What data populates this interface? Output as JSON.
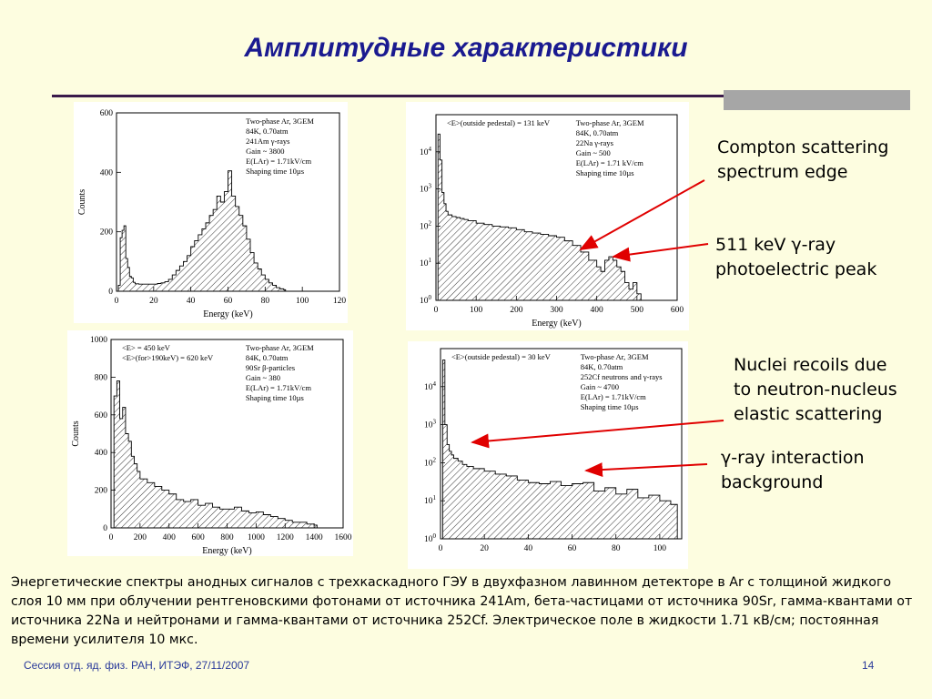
{
  "slide": {
    "title": "Амплитудные характеристики",
    "footer": "Сессия отд. яд. физ. РАН, ИТЭФ, 27/11/2007",
    "page_number": "14",
    "caption": "Энергетические спектры анодных сигналов с трехкаскадного ГЭУ в двухфазном лавинном детекторе в Ar с толщиной жидкого слоя 10 мм при облучении рентгеновскими фотонами от источника 241Am, бета-частицами от источника 90Sr, гамма-квантами от источника 22Na и нейтронами и гамма-квантами от источника 252Cf. Электрическое поле в жидкости 1.71 кВ/см; постоянная времени усилителя 10 мкс.",
    "colors": {
      "background": "#fdfde0",
      "title": "#1a1a90",
      "arrow": "#e00000",
      "footer": "#2a3a9a"
    }
  },
  "annotations": {
    "compton": [
      "Compton scattering",
      "spectrum edge"
    ],
    "peak511": [
      "511 keV γ-ray",
      "photoelectric peak"
    ],
    "nuclei": [
      "Nuclei recoils due",
      "to neutron-nucleus",
      "elastic scattering"
    ],
    "gamma_bg": [
      "γ-ray interaction",
      "background"
    ]
  },
  "chart_data": [
    {
      "type": "area",
      "title": "",
      "xlabel": "Energy (keV)",
      "ylabel": "Counts",
      "xlim": [
        0,
        120
      ],
      "ylim": [
        0,
        600
      ],
      "log_y": false,
      "xticks": [
        0,
        20,
        40,
        60,
        80,
        100,
        120
      ],
      "yticks": [
        0,
        200,
        400,
        600
      ],
      "legend_lines": [
        "Two-phase Ar, 3GEM",
        "84K, 0.70atm",
        "241Am γ-rays",
        "Gain ~ 3800",
        "E(LAr) = 1.71kV/cm",
        "Shaping time 10µs"
      ],
      "x": [
        1,
        2,
        3,
        4,
        5,
        6,
        7,
        8,
        9,
        10,
        12,
        14,
        16,
        18,
        20,
        22,
        24,
        26,
        28,
        30,
        32,
        34,
        36,
        38,
        40,
        42,
        44,
        46,
        48,
        50,
        52,
        54,
        56,
        58,
        60,
        62,
        64,
        66,
        68,
        70,
        72,
        74,
        76,
        78,
        80,
        82,
        84,
        86,
        88,
        90
      ],
      "y": [
        20,
        180,
        205,
        220,
        110,
        80,
        50,
        45,
        30,
        25,
        24,
        24,
        24,
        24,
        24,
        26,
        28,
        32,
        40,
        55,
        70,
        85,
        100,
        120,
        150,
        170,
        190,
        210,
        230,
        255,
        275,
        320,
        300,
        335,
        405,
        320,
        285,
        255,
        220,
        175,
        130,
        95,
        75,
        55,
        40,
        28,
        20,
        12,
        8,
        5
      ]
    },
    {
      "type": "area",
      "title": "",
      "xlabel": "Energy (keV)",
      "ylabel": "",
      "xlim": [
        0,
        600
      ],
      "ylim": [
        1,
        100000
      ],
      "log_y": true,
      "xticks": [
        0,
        100,
        200,
        300,
        400,
        500,
        600
      ],
      "ytick_labels": [
        "10^0",
        "10^1",
        "10^2",
        "10^3",
        "10^4"
      ],
      "annotations": [
        "<E>(outside pedestal) = 131 keV"
      ],
      "legend_lines": [
        "Two-phase Ar, 3GEM",
        "84K, 0.70atm",
        "22Na γ-rays",
        "Gain ~ 500",
        "E(LAr) = 1.71 kV/cm",
        "Shaping time 10µs"
      ],
      "x": [
        0,
        5,
        10,
        15,
        20,
        25,
        30,
        40,
        50,
        60,
        70,
        80,
        100,
        120,
        140,
        160,
        180,
        200,
        220,
        240,
        260,
        280,
        300,
        320,
        340,
        360,
        380,
        400,
        410,
        420,
        430,
        440,
        450,
        460,
        470,
        480,
        490,
        500,
        510
      ],
      "y": [
        1,
        30000,
        6000,
        800,
        400,
        250,
        200,
        180,
        170,
        160,
        150,
        140,
        120,
        110,
        100,
        95,
        90,
        80,
        70,
        65,
        60,
        55,
        50,
        40,
        30,
        20,
        12,
        8,
        6,
        12,
        15,
        12,
        8,
        6,
        3,
        2,
        3,
        1.5,
        1
      ]
    },
    {
      "type": "area",
      "title": "",
      "xlabel": "Energy (keV)",
      "ylabel": "Counts",
      "xlim": [
        0,
        1600
      ],
      "ylim": [
        0,
        1000
      ],
      "log_y": false,
      "xticks": [
        0,
        200,
        400,
        600,
        800,
        1000,
        1200,
        1400,
        1600
      ],
      "yticks": [
        0,
        200,
        400,
        600,
        800,
        1000
      ],
      "annotations": [
        "<E> = 450 keV",
        "<E>(for>190keV) = 620 keV"
      ],
      "legend_lines": [
        "Two-phase Ar, 3GEM",
        "84K, 0.70atm",
        "90Sr β-particles",
        "Gain ~ 380",
        "E(LAr) = 1.71kV/cm",
        "Shaping time 10µs"
      ],
      "x": [
        0,
        20,
        40,
        60,
        80,
        100,
        120,
        140,
        160,
        180,
        200,
        250,
        300,
        350,
        400,
        450,
        500,
        550,
        600,
        650,
        700,
        750,
        800,
        850,
        900,
        950,
        1000,
        1050,
        1100,
        1150,
        1200,
        1250,
        1300,
        1350,
        1400,
        1420
      ],
      "y": [
        0,
        700,
        780,
        580,
        640,
        500,
        460,
        380,
        340,
        300,
        260,
        240,
        220,
        200,
        180,
        150,
        140,
        150,
        120,
        130,
        110,
        100,
        100,
        110,
        90,
        80,
        85,
        70,
        60,
        50,
        40,
        30,
        30,
        20,
        15,
        0
      ]
    },
    {
      "type": "area",
      "title": "",
      "xlabel": "",
      "ylabel": "",
      "xlim": [
        0,
        110
      ],
      "ylim": [
        1,
        100000
      ],
      "log_y": true,
      "xticks": [
        0,
        20,
        40,
        60,
        80,
        100
      ],
      "ytick_labels": [
        "10^0",
        "10^1",
        "10^2",
        "10^3",
        "10^4"
      ],
      "annotations": [
        "<E>(outside pedestal) = 30 keV"
      ],
      "legend_lines": [
        "Two-phase Ar, 3GEM",
        "84K, 0.70atm",
        "252Cf neutrons and γ-rays",
        "Gain ~ 4700",
        "E(LAr) = 1.71kV/cm",
        "Shaping time 10µs"
      ],
      "x": [
        0,
        1,
        2,
        3,
        4,
        5,
        6,
        8,
        10,
        12,
        15,
        20,
        25,
        30,
        35,
        40,
        45,
        50,
        55,
        60,
        65,
        70,
        75,
        80,
        85,
        90,
        95,
        100,
        105,
        108
      ],
      "y": [
        1,
        50000,
        1000,
        300,
        200,
        160,
        130,
        110,
        90,
        80,
        70,
        60,
        50,
        45,
        35,
        30,
        28,
        32,
        25,
        28,
        30,
        18,
        22,
        15,
        20,
        12,
        14,
        10,
        8,
        1
      ]
    }
  ]
}
